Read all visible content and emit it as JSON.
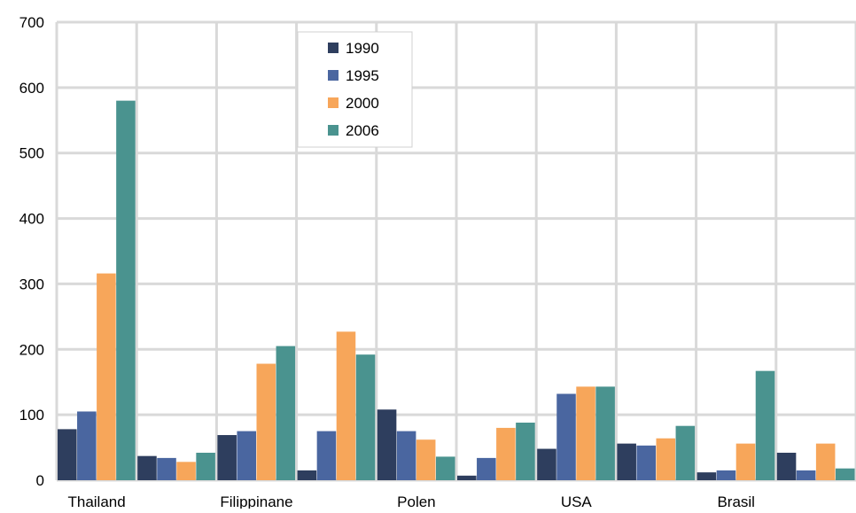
{
  "chart_data": {
    "type": "bar",
    "title": "",
    "xlabel": "",
    "ylabel": "",
    "ylim": [
      0,
      700
    ],
    "yticks": [
      0,
      100,
      200,
      300,
      400,
      500,
      600,
      700
    ],
    "grid": true,
    "legend_position": "top-center",
    "categories": [
      "Thailand",
      "",
      "Filippinane",
      "",
      "Polen",
      "",
      "USA",
      "",
      "Brasil",
      ""
    ],
    "series": [
      {
        "name": "1990",
        "color": "#2e3e5e",
        "values": [
          78,
          37,
          69,
          15,
          108,
          7,
          48,
          56,
          12,
          42
        ]
      },
      {
        "name": "1995",
        "color": "#4a66a0",
        "values": [
          105,
          34,
          75,
          75,
          75,
          34,
          132,
          53,
          15,
          15
        ]
      },
      {
        "name": "2000",
        "color": "#f7a65a",
        "values": [
          316,
          28,
          178,
          227,
          62,
          80,
          143,
          64,
          56,
          56
        ]
      },
      {
        "name": "2006",
        "color": "#4a938f",
        "values": [
          580,
          42,
          205,
          192,
          36,
          88,
          143,
          83,
          167,
          18
        ]
      }
    ]
  }
}
